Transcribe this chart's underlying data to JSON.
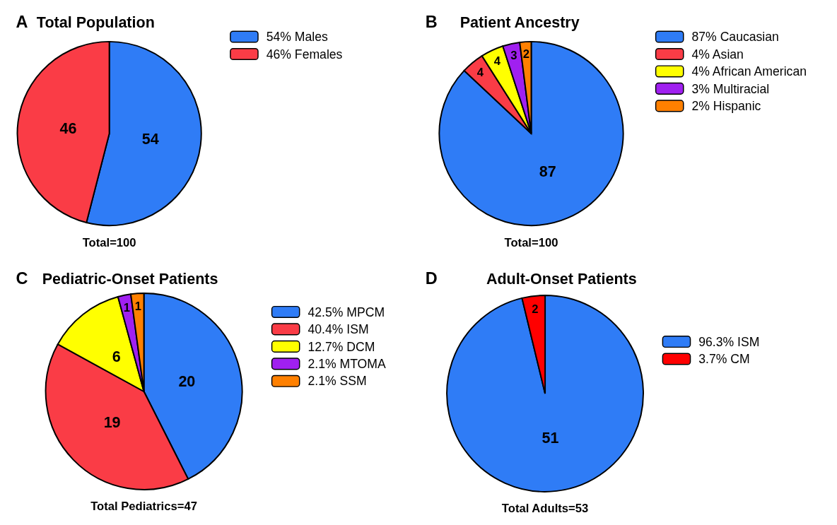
{
  "chart_data": [
    {
      "type": "pie",
      "title": "Total Population",
      "annotations": [
        "A",
        "Total=100"
      ],
      "categories": [
        "54%  Males",
        "46%  Females"
      ],
      "values": [
        54,
        46
      ],
      "colors": [
        "#2f7cf6",
        "#fa3c46"
      ],
      "data_labels": true,
      "legend": "right"
    },
    {
      "type": "pie",
      "title": "Patient Ancestry",
      "annotations": [
        "B",
        "Total=100"
      ],
      "categories": [
        "87%  Caucasian",
        "4%  Asian",
        "4%  African American",
        "3%  Multiracial",
        "2%  Hispanic"
      ],
      "values": [
        87,
        4,
        4,
        3,
        2
      ],
      "colors": [
        "#2f7cf6",
        "#fa3c46",
        "#ffff00",
        "#a020f0",
        "#ff8000"
      ],
      "data_labels": true,
      "legend": "right"
    },
    {
      "type": "pie",
      "title": "Pediatric-Onset Patients",
      "annotations": [
        "C",
        "Total Pediatrics=47"
      ],
      "categories": [
        "42.5%  MPCM",
        "40.4%  ISM",
        "12.7%  DCM",
        "2.1%  MTOMA",
        "2.1%  SSM"
      ],
      "values": [
        20,
        19,
        6,
        1,
        1
      ],
      "colors": [
        "#2f7cf6",
        "#fa3c46",
        "#ffff00",
        "#a020f0",
        "#ff8000"
      ],
      "data_labels": true,
      "legend": "right"
    },
    {
      "type": "pie",
      "title": "Adult-Onset Patients",
      "annotations": [
        "D",
        "Total Adults=53"
      ],
      "categories": [
        "96.3%  ISM",
        "3.7%  CM"
      ],
      "values": [
        51,
        2
      ],
      "colors": [
        "#2f7cf6",
        "#ff0000"
      ],
      "data_labels": true,
      "legend": "right"
    }
  ]
}
